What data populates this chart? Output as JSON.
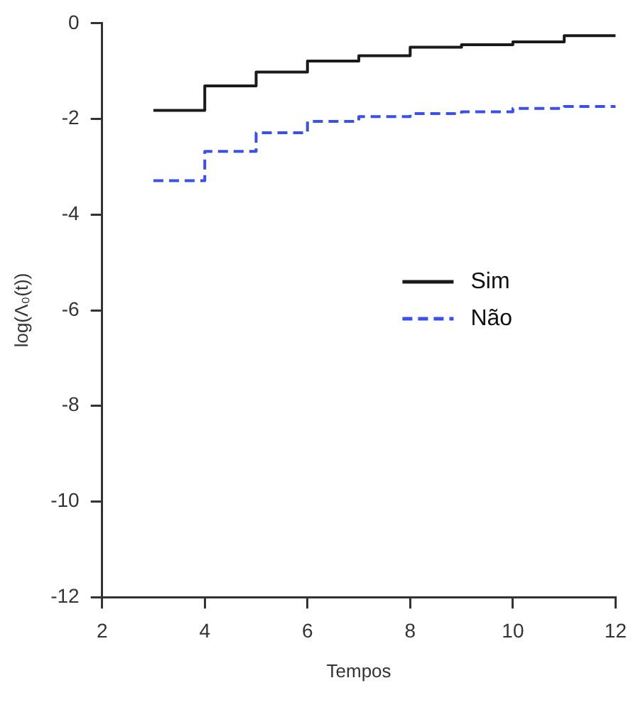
{
  "chart_data": {
    "type": "step",
    "xlabel": "Tempos",
    "ylabel": "log(Λ₀(t))",
    "x": [
      3,
      4,
      5,
      6,
      7,
      8,
      9,
      10,
      11,
      12
    ],
    "series": [
      {
        "name": "Sim",
        "color": "#1a1a1a",
        "line_style": "solid",
        "values": [
          -1.82,
          -1.31,
          -1.02,
          -0.79,
          -0.68,
          -0.5,
          -0.45,
          -0.39,
          -0.26,
          -0.24
        ]
      },
      {
        "name": "Não",
        "color": "#3a50ee",
        "line_style": "dashed",
        "values": [
          -3.29,
          -2.68,
          -2.29,
          -2.05,
          -1.95,
          -1.89,
          -1.85,
          -1.78,
          -1.74,
          -1.72
        ]
      }
    ],
    "xlim": [
      2,
      12
    ],
    "xticks": [
      2,
      4,
      6,
      8,
      10,
      12
    ],
    "ylim": [
      -12,
      0
    ],
    "yticks": [
      -12,
      -10,
      -8,
      -6,
      -4,
      -2,
      0
    ],
    "grid": false,
    "legend": "right",
    "marker": "none"
  }
}
